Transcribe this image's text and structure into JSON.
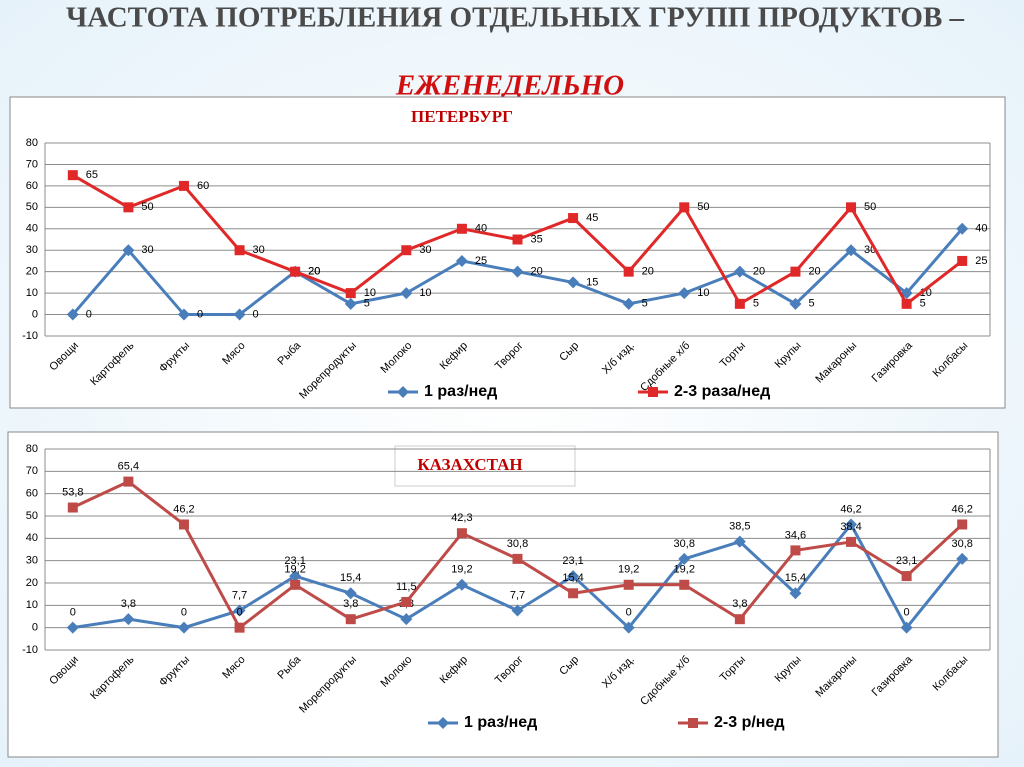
{
  "title": "ЧАСТОТА ПОТРЕБЛЕНИЯ ОТДЕЛЬНЫХ ГРУПП ПРОДУКТОВ –",
  "subtitle": "ЕЖЕНЕДЕЛЬНО",
  "chart_data": [
    {
      "type": "line",
      "title": "ПЕТЕРБУРГ",
      "categories": [
        "Овощи",
        "Картофель",
        "Фрукты",
        "Мясо",
        "Рыба",
        "Морепродукты",
        "Молоко",
        "Кефир",
        "Творог",
        "Сыр",
        "Х/б изд.",
        "Сдобные х/б",
        "Торты",
        "Крупы",
        "Макароны",
        "Газировка",
        "Колбасы"
      ],
      "series": [
        {
          "name": "1 раз/нед",
          "color": "#4a7ebb",
          "marker": "diamond",
          "values": [
            0,
            30,
            0,
            0,
            20,
            5,
            10,
            25,
            20,
            15,
            5,
            10,
            20,
            5,
            30,
            10,
            40
          ]
        },
        {
          "name": "2-3 раза/нед",
          "color": "#e02828",
          "marker": "square",
          "values": [
            65,
            50,
            60,
            30,
            20,
            10,
            30,
            40,
            35,
            45,
            20,
            50,
            5,
            20,
            50,
            5,
            25
          ]
        }
      ],
      "ylim": [
        -10,
        80
      ],
      "yticks": [
        -10,
        0,
        10,
        20,
        30,
        40,
        50,
        60,
        70,
        80
      ],
      "grid": true
    },
    {
      "type": "line",
      "title": "КАЗАХСТАН",
      "categories": [
        "Овощи",
        "Картофель",
        "Фрукты",
        "Мясо",
        "Рыба",
        "Морепродукты",
        "Молоко",
        "Кефир",
        "Творог",
        "Сыр",
        "Х/б изд.",
        "Сдобные х/б",
        "Торты",
        "Крупы",
        "Макароны",
        "Газировка",
        "Колбасы"
      ],
      "series": [
        {
          "name": "1 раз/нед",
          "color": "#4a7ebb",
          "marker": "diamond",
          "values": [
            0,
            3.8,
            0,
            7.7,
            23.1,
            15.4,
            3.8,
            19.2,
            7.7,
            23.1,
            0,
            30.8,
            38.5,
            15.4,
            46.2,
            0,
            30.8
          ],
          "value_labels": [
            "0",
            "3,8",
            "0",
            "7,7",
            "23,1",
            "15,4",
            "3,8",
            "19,2",
            "7,7",
            "23,1",
            "0",
            "30,8",
            "38,5",
            "15,4",
            "46,2",
            "0",
            "30,8"
          ]
        },
        {
          "name": "2-3 р/нед",
          "color": "#be4b48",
          "marker": "square",
          "values": [
            53.8,
            65.4,
            46.2,
            0,
            19.2,
            3.8,
            11.5,
            42.3,
            30.8,
            15.4,
            19.2,
            19.2,
            3.8,
            34.6,
            38.4,
            23.1,
            46.2
          ],
          "value_labels": [
            "53,8",
            "65,4",
            "46,2",
            "0",
            "19,2",
            "3,8",
            "11,5",
            "42,3",
            "30,8",
            "15,4",
            "19,2",
            "19,2",
            "3,8",
            "34,6",
            "38,4",
            "23,1",
            "46,2"
          ]
        }
      ],
      "ylim": [
        -10,
        80
      ],
      "yticks": [
        -10,
        0,
        10,
        20,
        30,
        40,
        50,
        60,
        70,
        80
      ],
      "grid": true
    }
  ]
}
